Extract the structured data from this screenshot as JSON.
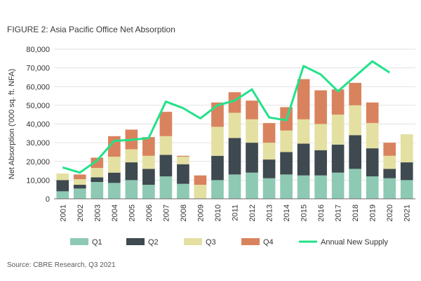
{
  "figure": {
    "title": "FIGURE 2: Asia Pacific Office Net Absorption",
    "source": "Source: CBRE Research, Q3 2021"
  },
  "colors": {
    "Q1": "#8ec9b4",
    "Q2": "#3e4a4f",
    "Q3": "#e4e0a2",
    "Q4": "#d9835e",
    "line": "#22e28a",
    "grid": "#d9d9d9",
    "axis": "#6b6b6b",
    "text": "#333333"
  },
  "chart_data": {
    "type": "bar",
    "stacked": true,
    "title": "FIGURE 2: Asia Pacific Office Net Absorption",
    "xlabel": "",
    "ylabel": "Net Absorption ('000 sq. ft. NFA)",
    "ylim": [
      0,
      80000
    ],
    "yticks": [
      0,
      10000,
      20000,
      30000,
      40000,
      50000,
      60000,
      70000,
      80000
    ],
    "ytick_labels": [
      "0",
      "10,000",
      "20,000",
      "30,000",
      "40,000",
      "50,000",
      "60,000",
      "70,000",
      "80,000"
    ],
    "categories": [
      "2001",
      "2002",
      "2003",
      "2004",
      "2005",
      "2006",
      "2007",
      "2008",
      "2009",
      "2010",
      "2011",
      "2012",
      "2013",
      "2014",
      "2015",
      "2016",
      "2017",
      "2018",
      "2019",
      "2020",
      "2021"
    ],
    "series": [
      {
        "name": "Q1",
        "values": [
          4000,
          5500,
          9000,
          8500,
          10000,
          7500,
          12000,
          8000,
          0,
          10000,
          13000,
          14000,
          11000,
          13000,
          12500,
          12500,
          14000,
          16000,
          12000,
          11000,
          10000
        ]
      },
      {
        "name": "Q2",
        "values": [
          6000,
          2000,
          2500,
          5500,
          9500,
          8500,
          11500,
          10500,
          0,
          13000,
          19500,
          16000,
          10000,
          12000,
          17000,
          13500,
          15000,
          18000,
          15000,
          5000,
          9500
        ]
      },
      {
        "name": "Q3",
        "values": [
          3500,
          3000,
          5000,
          8500,
          7000,
          7000,
          10000,
          4000,
          7500,
          15500,
          13500,
          12500,
          9000,
          11500,
          13000,
          14000,
          16000,
          16000,
          13500,
          7000,
          15000
        ]
      },
      {
        "name": "Q4",
        "values": [
          0,
          2500,
          5500,
          11000,
          10500,
          10000,
          13000,
          500,
          5000,
          13000,
          11000,
          10000,
          10500,
          12500,
          21500,
          18000,
          13500,
          12000,
          11000,
          7000,
          0
        ]
      }
    ],
    "line_series": {
      "name": "Annual New Supply",
      "values": [
        16800,
        14000,
        20500,
        31000,
        31500,
        32500,
        52000,
        48500,
        43000,
        50000,
        52500,
        58500,
        43500,
        42000,
        71000,
        66500,
        57500,
        65500,
        73500,
        67500,
        null
      ]
    },
    "legend": [
      "Q1",
      "Q2",
      "Q3",
      "Q4",
      "Annual New Supply"
    ],
    "legend_position": "bottom",
    "grid": true
  }
}
